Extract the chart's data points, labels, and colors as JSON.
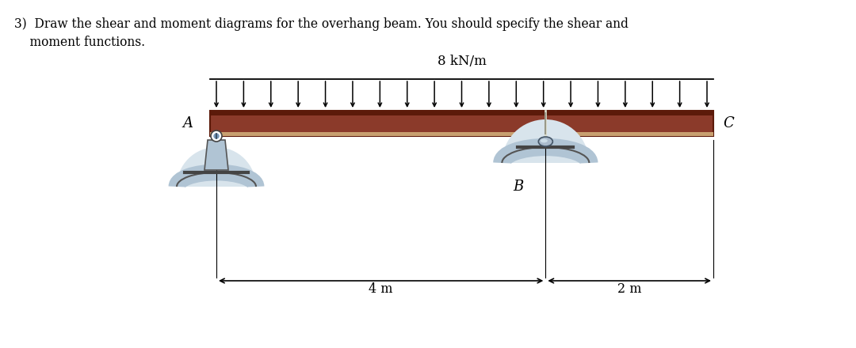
{
  "title_line1": "3)  Draw the shear and moment diagrams for the overhang beam. You should specify the shear and",
  "title_line2": "    moment functions.",
  "load_label": "8 kN/m",
  "label_A": "A",
  "label_B": "B",
  "label_C": "C",
  "dim_AB": "4 m",
  "dim_BC": "2 m",
  "beam_color": "#8B3A2A",
  "beam_dark_color": "#5C1A0A",
  "beam_bottom_color": "#C8A070",
  "bg_color": "#ffffff",
  "support_color": "#B0C4D4",
  "support_edge": "#555555",
  "n_arrows": 19
}
